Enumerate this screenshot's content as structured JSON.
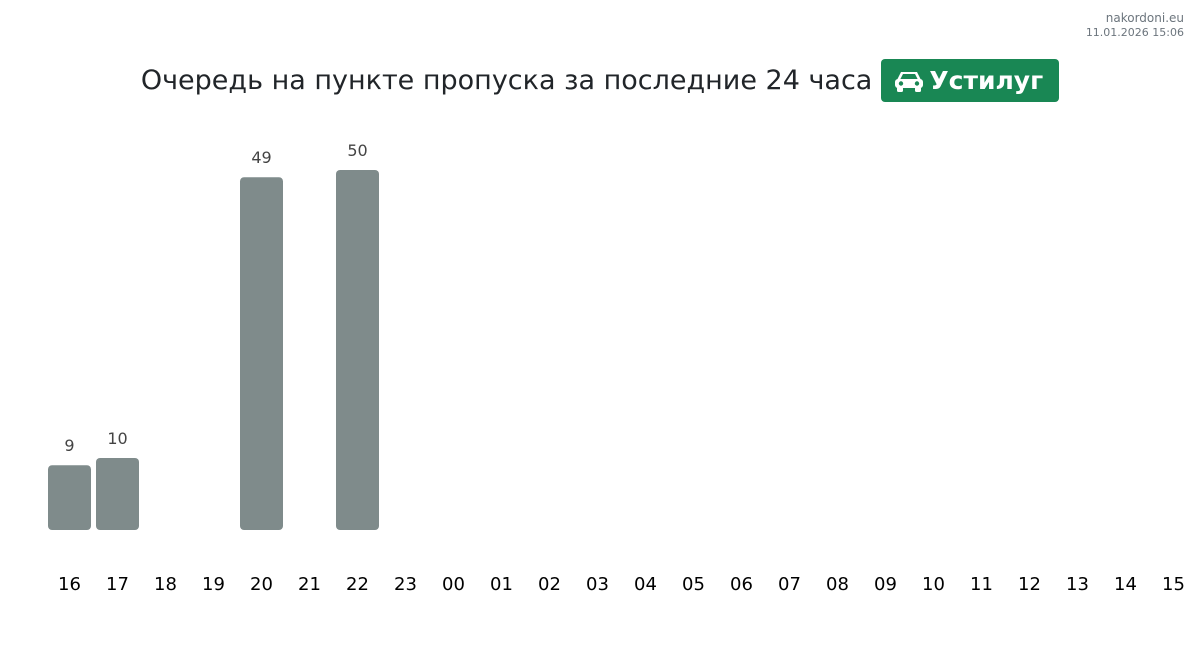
{
  "header": {
    "site": "nakordoni.eu",
    "timestamp": "11.01.2026 15:06",
    "title": "Очередь на пункте пропуска за последние 24 часа",
    "checkpoint": "Устилуг",
    "checkpoint_icon": "car-icon"
  },
  "colors": {
    "bar": "#7f8b8b",
    "badge": "#198754",
    "title": "#212529",
    "label": "#444444",
    "muted": "#6c757d"
  },
  "chart_data": {
    "type": "bar",
    "title": "Очередь на пункте пропуска за последние 24 часа",
    "xlabel": "",
    "ylabel": "",
    "grid": false,
    "categories": [
      "16",
      "17",
      "18",
      "19",
      "20",
      "21",
      "22",
      "23",
      "00",
      "01",
      "02",
      "03",
      "04",
      "05",
      "06",
      "07",
      "08",
      "09",
      "10",
      "11",
      "12",
      "13",
      "14",
      "15"
    ],
    "values": [
      9,
      10,
      null,
      null,
      49,
      null,
      50,
      null,
      null,
      null,
      null,
      null,
      null,
      null,
      null,
      null,
      null,
      null,
      null,
      null,
      null,
      null,
      null,
      null
    ],
    "ylim": [
      0,
      50
    ]
  }
}
